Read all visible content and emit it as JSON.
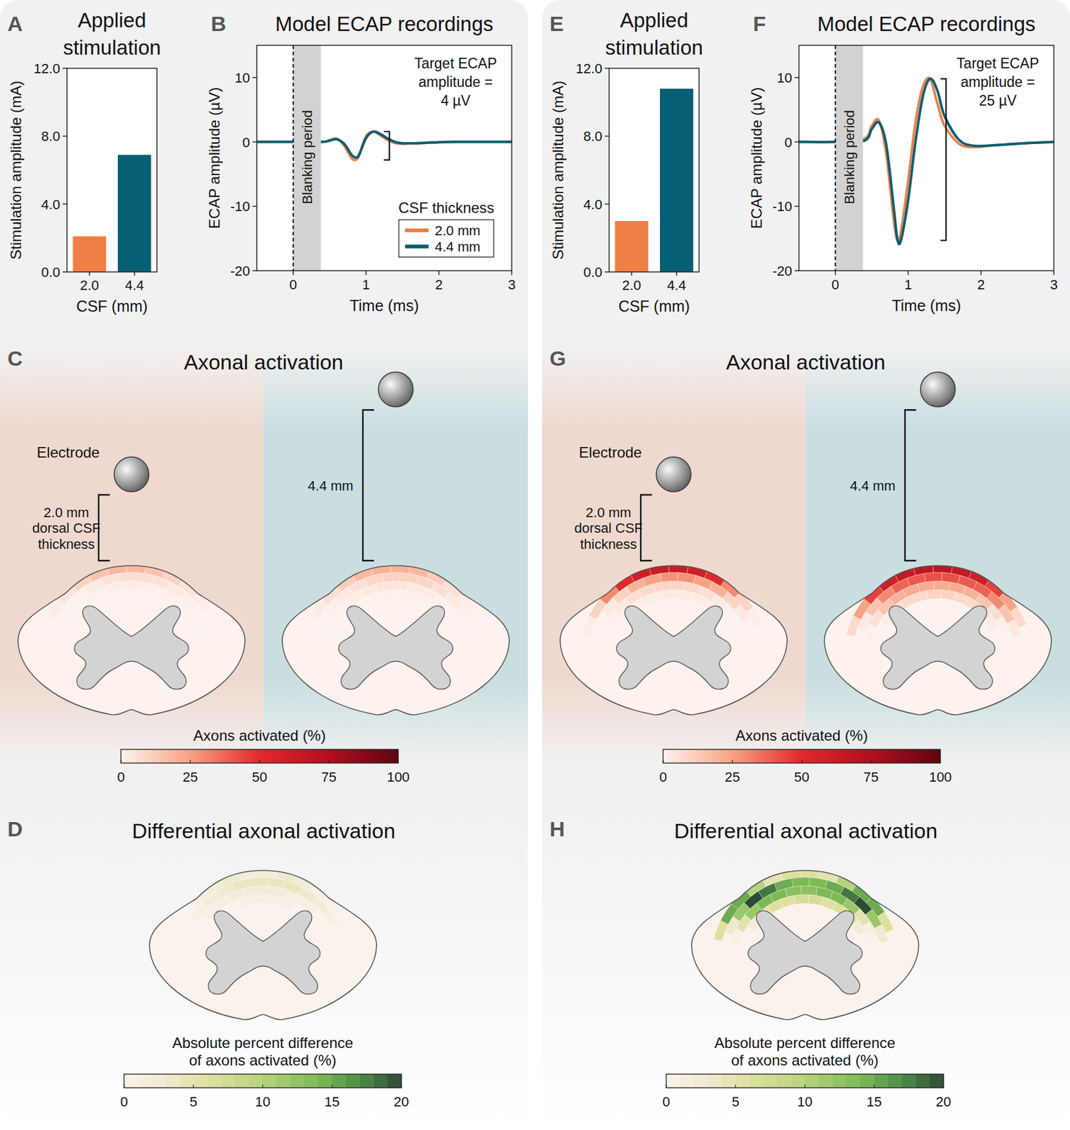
{
  "chart_data": [
    {
      "label": "A",
      "type": "bar",
      "title": [
        "Applied",
        "stimulation"
      ],
      "x_label": "CSF (mm)",
      "y_label": "Stimulation amplitude (mA)",
      "categories": [
        "2.0",
        "4.4"
      ],
      "values": [
        2.1,
        6.9
      ],
      "colors": [
        "#f07f45",
        "#075f73"
      ],
      "ylim": [
        0,
        12
      ],
      "yticks": [
        {
          "value": 0,
          "label": "0.0"
        },
        {
          "value": 4,
          "label": "4.0"
        },
        {
          "value": 8,
          "label": "8.0"
        },
        {
          "value": 12,
          "label": "12.0"
        }
      ]
    },
    {
      "label": "B",
      "type": "line",
      "title": "Model ECAP recordings",
      "x_label": "Time (ms)",
      "y_label": "ECAP amplitude (µV)",
      "x": [
        -0.5,
        0,
        0.4,
        0.5,
        0.6,
        0.7,
        0.8,
        0.85,
        0.9,
        1.0,
        1.1,
        1.2,
        1.3,
        1.4,
        1.5,
        1.7,
        1.9,
        2.2,
        2.6,
        3.0
      ],
      "series": [
        {
          "name": "2.0 mm",
          "color": "#f07f45",
          "values": [
            0,
            0,
            0,
            0.3,
            0.5,
            -0.6,
            -2.5,
            -2.8,
            -2.2,
            0.9,
            1.6,
            1.0,
            0.3,
            -0.2,
            -0.3,
            -0.2,
            -0.1,
            0,
            0,
            0
          ]
        },
        {
          "name": "4.4 mm",
          "color": "#075f73",
          "values": [
            0,
            0,
            0,
            0.2,
            0.4,
            -0.3,
            -2.0,
            -2.4,
            -2.1,
            0.6,
            1.6,
            1.2,
            0.5,
            0,
            -0.2,
            -0.2,
            -0.1,
            0,
            0,
            0
          ]
        }
      ],
      "xlim": [
        -0.5,
        3
      ],
      "xticks": [
        0,
        1,
        2,
        3
      ],
      "ylim": [
        -20,
        15
      ],
      "yticks": [
        -20,
        -10,
        0,
        10
      ],
      "legend": "lower right",
      "legend_title": "CSF thickness",
      "annotations": [
        {
          "text": [
            "Target ECAP",
            "amplitude =",
            "4 µV"
          ]
        },
        {
          "text": "Blanking period",
          "x": [
            0,
            0.38
          ]
        }
      ]
    },
    {
      "label": "E",
      "type": "bar",
      "title": [
        "Applied",
        "stimulation"
      ],
      "x_label": "CSF (mm)",
      "y_label": "Stimulation amplitude (mA)",
      "categories": [
        "2.0",
        "4.4"
      ],
      "values": [
        3.0,
        10.8
      ],
      "colors": [
        "#f07f45",
        "#075f73"
      ],
      "ylim": [
        0,
        12
      ],
      "yticks": [
        {
          "value": 0,
          "label": "0.0"
        },
        {
          "value": 4,
          "label": "4.0"
        },
        {
          "value": 8,
          "label": "8.0"
        },
        {
          "value": 12,
          "label": "12.0"
        }
      ]
    },
    {
      "label": "F",
      "type": "line",
      "title": "Model ECAP recordings",
      "x_label": "Time (ms)",
      "y_label": "ECAP amplitude (µV)",
      "x": [
        -0.5,
        0,
        0.4,
        0.5,
        0.6,
        0.7,
        0.8,
        0.85,
        0.9,
        1.0,
        1.1,
        1.2,
        1.3,
        1.4,
        1.5,
        1.7,
        1.9,
        2.2,
        2.6,
        3.0
      ],
      "series": [
        {
          "name": "2.0 mm",
          "color": "#f07f45",
          "values": [
            0,
            0,
            0.5,
            2.5,
            3.3,
            -2.0,
            -12.0,
            -15.3,
            -14.0,
            -6.0,
            3.0,
            8.5,
            9.8,
            6.0,
            2.5,
            -0.3,
            -0.8,
            -0.5,
            -0.2,
            0
          ]
        },
        {
          "name": "4.4 mm",
          "color": "#075f73",
          "values": [
            0,
            0,
            0.2,
            2.0,
            3.0,
            -0.5,
            -10.0,
            -15.0,
            -15.3,
            -9.0,
            0,
            7.0,
            9.8,
            8.0,
            4.0,
            0.3,
            -0.6,
            -0.5,
            -0.2,
            0
          ]
        }
      ],
      "xlim": [
        -0.5,
        3
      ],
      "xticks": [
        0,
        1,
        2,
        3
      ],
      "ylim": [
        -20,
        15
      ],
      "yticks": [
        -20,
        -10,
        0,
        10
      ],
      "annotations": [
        {
          "text": [
            "Target ECAP",
            "amplitude =",
            "25 µV"
          ]
        },
        {
          "text": "Blanking period",
          "x": [
            0,
            0.38
          ]
        }
      ]
    }
  ],
  "diagrams": [
    {
      "label": "C",
      "title": "Axonal activation",
      "electrode_label": "Electrode",
      "maps": [
        {
          "csf_mm": 2.0,
          "csf_label": [
            "2.0 mm",
            "dorsal CSF",
            "thickness"
          ],
          "cells": [
            [
              0,
              2,
              5,
              10,
              15,
              18,
              18,
              15,
              10,
              5,
              2,
              0
            ],
            [
              0,
              0,
              1,
              3,
              5,
              6,
              6,
              5,
              3,
              1,
              0,
              0
            ],
            [
              0,
              0,
              0,
              1,
              1,
              2,
              2,
              1,
              1,
              0,
              0,
              0
            ],
            [
              0,
              0,
              0,
              0,
              0,
              0,
              0,
              0,
              0,
              0,
              0,
              0
            ]
          ]
        },
        {
          "csf_mm": 4.4,
          "csf_label": [
            "4.4 mm"
          ],
          "cells": [
            [
              0,
              2,
              6,
              12,
              18,
              20,
              20,
              18,
              12,
              6,
              2,
              0
            ],
            [
              0,
              1,
              3,
              6,
              9,
              10,
              10,
              9,
              6,
              3,
              1,
              0
            ],
            [
              0,
              0,
              1,
              2,
              3,
              4,
              4,
              3,
              2,
              1,
              0,
              0
            ],
            [
              0,
              0,
              0,
              0,
              1,
              1,
              1,
              1,
              0,
              0,
              0,
              0
            ]
          ]
        }
      ],
      "colorbar": {
        "title": [
          "Axons activated (%)"
        ],
        "range": [
          0,
          100
        ],
        "ticks": [
          0,
          25,
          50,
          75,
          100
        ]
      }
    },
    {
      "label": "D",
      "title": "Differential axonal activation",
      "maps": [
        {
          "cells": [
            [
              0,
              0,
              1,
              2,
              3,
              2,
              2,
              3,
              2,
              1,
              0,
              0
            ],
            [
              0,
              1,
              2,
              3,
              4,
              4,
              4,
              4,
              3,
              2,
              1,
              0
            ],
            [
              0,
              0,
              1,
              1,
              2,
              2,
              2,
              2,
              1,
              1,
              0,
              0
            ],
            [
              0,
              0,
              0,
              0,
              1,
              1,
              1,
              1,
              0,
              0,
              0,
              0
            ]
          ]
        }
      ],
      "colorbar": {
        "title": [
          "Absolute percent difference",
          "of axons activated (%)"
        ],
        "range": [
          0,
          20
        ],
        "ticks": [
          0,
          5,
          10,
          15,
          20
        ]
      }
    },
    {
      "label": "G",
      "title": "Axonal activation",
      "electrode_label": "Electrode",
      "maps": [
        {
          "csf_mm": 2.0,
          "csf_label": [
            "2.0 mm",
            "dorsal CSF",
            "thickness"
          ],
          "cells": [
            [
              2,
              10,
              30,
              50,
              60,
              62,
              62,
              60,
              50,
              30,
              10,
              2
            ],
            [
              0,
              3,
              10,
              20,
              25,
              28,
              28,
              25,
              20,
              10,
              3,
              0
            ],
            [
              0,
              1,
              3,
              6,
              8,
              9,
              9,
              8,
              6,
              3,
              1,
              0
            ],
            [
              0,
              0,
              1,
              2,
              2,
              3,
              3,
              2,
              2,
              1,
              0,
              0
            ]
          ]
        },
        {
          "csf_mm": 4.4,
          "csf_label": [
            "4.4 mm"
          ],
          "cells": [
            [
              8,
              25,
              45,
              60,
              65,
              68,
              68,
              65,
              60,
              45,
              25,
              8
            ],
            [
              3,
              15,
              30,
              38,
              40,
              42,
              42,
              40,
              38,
              30,
              15,
              3
            ],
            [
              1,
              6,
              15,
              20,
              22,
              22,
              22,
              22,
              20,
              15,
              6,
              1
            ],
            [
              0,
              2,
              6,
              8,
              8,
              10,
              10,
              8,
              8,
              6,
              2,
              0
            ]
          ]
        }
      ],
      "colorbar": {
        "title": [
          "Axons activated (%)"
        ],
        "range": [
          0,
          100
        ],
        "ticks": [
          0,
          25,
          50,
          75,
          100
        ]
      }
    },
    {
      "label": "H",
      "title": "Differential axonal activation",
      "maps": [
        {
          "cells": [
            [
              6,
              15,
              15,
              10,
              5,
              6,
              6,
              5,
              10,
              15,
              15,
              6
            ],
            [
              3,
              12,
              20,
              18,
              15,
              14,
              14,
              15,
              18,
              20,
              12,
              3
            ],
            [
              1,
              5,
              12,
              14,
              14,
              13,
              13,
              14,
              14,
              12,
              5,
              1
            ],
            [
              0,
              2,
              5,
              6,
              6,
              7,
              7,
              6,
              6,
              5,
              2,
              0
            ]
          ]
        }
      ],
      "colorbar": {
        "title": [
          "Absolute percent difference",
          "of axons activated (%)"
        ],
        "range": [
          0,
          20
        ],
        "ticks": [
          0,
          5,
          10,
          15,
          20
        ]
      }
    }
  ]
}
